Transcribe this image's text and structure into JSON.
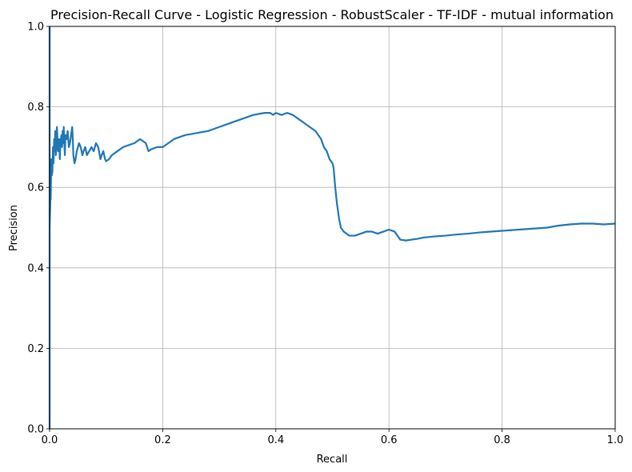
{
  "chart_data": {
    "type": "line",
    "title": "Precision-Recall Curve - Logistic Regression - RobustScaler - TF-IDF - mutual information",
    "xlabel": "Recall",
    "ylabel": "Precision",
    "xlim": [
      0,
      1
    ],
    "ylim": [
      0,
      1
    ],
    "xticks": [
      0,
      0.2,
      0.4,
      0.6,
      0.8,
      1.0
    ],
    "yticks": [
      0,
      0.2,
      0.4,
      0.6,
      0.8,
      1.0
    ],
    "xtick_labels": [
      "0.0",
      "0.2",
      "0.4",
      "0.6",
      "0.8",
      "1.0"
    ],
    "ytick_labels": [
      "0.0",
      "0.2",
      "0.4",
      "0.6",
      "0.8",
      "1.0"
    ],
    "grid": true,
    "line_color": "#1f77b4",
    "series": [
      {
        "x": [
          0,
          0,
          0,
          0.001,
          0.002,
          0.002,
          0.003,
          0.004,
          0.005,
          0.006,
          0.007,
          0.008,
          0.009,
          0.01,
          0.011,
          0.012,
          0.013,
          0.015,
          0.016,
          0.017,
          0.018,
          0.019,
          0.02,
          0.021,
          0.022,
          0.023,
          0.024,
          0.025,
          0.027,
          0.028,
          0.03,
          0.032,
          0.034,
          0.036,
          0.038,
          0.04,
          0.041,
          0.042,
          0.044,
          0.046,
          0.048,
          0.05,
          0.052,
          0.055,
          0.058,
          0.06,
          0.063,
          0.066,
          0.07,
          0.074,
          0.078,
          0.082,
          0.086,
          0.09,
          0.092,
          0.095,
          0.098,
          0.1,
          0.105,
          0.11,
          0.115,
          0.12,
          0.13,
          0.14,
          0.15,
          0.16,
          0.17,
          0.175,
          0.18,
          0.19,
          0.2,
          0.21,
          0.22,
          0.24,
          0.26,
          0.28,
          0.3,
          0.32,
          0.34,
          0.36,
          0.38,
          0.39,
          0.395,
          0.4,
          0.41,
          0.42,
          0.43,
          0.44,
          0.45,
          0.46,
          0.47,
          0.48,
          0.485,
          0.49,
          0.495,
          0.5,
          0.502,
          0.505,
          0.508,
          0.51,
          0.512,
          0.515,
          0.52,
          0.525,
          0.53,
          0.54,
          0.55,
          0.56,
          0.57,
          0.58,
          0.59,
          0.6,
          0.61,
          0.615,
          0.62,
          0.63,
          0.64,
          0.65,
          0.66,
          0.68,
          0.7,
          0.72,
          0.74,
          0.76,
          0.78,
          0.8,
          0.82,
          0.84,
          0.86,
          0.88,
          0.9,
          0.92,
          0.94,
          0.96,
          0.98,
          1.0
        ],
        "y": [
          1.0,
          0.0,
          0.5,
          0.55,
          0.6,
          0.57,
          0.67,
          0.63,
          0.64,
          0.7,
          0.66,
          0.72,
          0.69,
          0.74,
          0.68,
          0.7,
          0.75,
          0.69,
          0.7,
          0.72,
          0.67,
          0.71,
          0.72,
          0.73,
          0.7,
          0.74,
          0.71,
          0.75,
          0.68,
          0.73,
          0.72,
          0.74,
          0.7,
          0.71,
          0.73,
          0.75,
          0.72,
          0.68,
          0.66,
          0.67,
          0.69,
          0.7,
          0.71,
          0.7,
          0.68,
          0.69,
          0.7,
          0.68,
          0.69,
          0.7,
          0.69,
          0.71,
          0.7,
          0.67,
          0.68,
          0.69,
          0.67,
          0.665,
          0.67,
          0.68,
          0.685,
          0.69,
          0.7,
          0.705,
          0.71,
          0.72,
          0.71,
          0.69,
          0.695,
          0.7,
          0.7,
          0.71,
          0.72,
          0.73,
          0.735,
          0.74,
          0.75,
          0.76,
          0.77,
          0.78,
          0.785,
          0.785,
          0.78,
          0.785,
          0.78,
          0.785,
          0.78,
          0.77,
          0.76,
          0.75,
          0.74,
          0.72,
          0.7,
          0.69,
          0.67,
          0.66,
          0.65,
          0.6,
          0.56,
          0.54,
          0.52,
          0.5,
          0.49,
          0.485,
          0.48,
          0.48,
          0.485,
          0.49,
          0.49,
          0.485,
          0.49,
          0.495,
          0.49,
          0.48,
          0.47,
          0.468,
          0.47,
          0.472,
          0.475,
          0.478,
          0.48,
          0.483,
          0.485,
          0.488,
          0.49,
          0.492,
          0.494,
          0.496,
          0.498,
          0.5,
          0.505,
          0.508,
          0.51,
          0.51,
          0.508,
          0.51
        ]
      }
    ]
  }
}
